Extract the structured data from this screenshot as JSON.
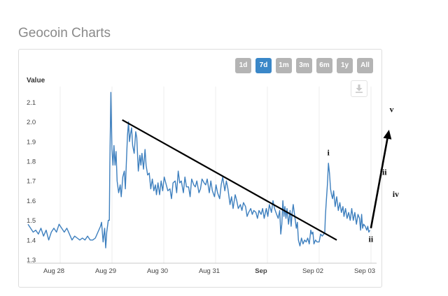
{
  "page": {
    "title": "Geocoin Charts"
  },
  "range_buttons": [
    {
      "label": "1d",
      "active": false
    },
    {
      "label": "7d",
      "active": true
    },
    {
      "label": "1m",
      "active": false
    },
    {
      "label": "3m",
      "active": false
    },
    {
      "label": "6m",
      "active": false
    },
    {
      "label": "1y",
      "active": false
    },
    {
      "label": "All",
      "active": false
    }
  ],
  "icons": {
    "export": "download-icon"
  },
  "colors": {
    "series": "#3d7fbe",
    "active_button": "#3a87c8",
    "button": "#b4b4b4"
  },
  "chart_data": {
    "type": "line",
    "ylabel": "Value",
    "ylim": [
      1.3,
      2.2
    ],
    "yticks": [
      "1.3",
      "1.4",
      "1.5",
      "1.6",
      "1.7",
      "1.8",
      "1.9",
      "2.0",
      "2.1"
    ],
    "xlim": [
      0,
      6.6
    ],
    "xticks": [
      {
        "label": "Aug 28",
        "x": 0.5
      },
      {
        "label": "Aug 29",
        "x": 1.5
      },
      {
        "label": "Aug 30",
        "x": 2.5
      },
      {
        "label": "Aug 31",
        "x": 3.5
      },
      {
        "label": "Sep",
        "x": 4.5,
        "bold": true
      },
      {
        "label": "Sep 02",
        "x": 5.5
      },
      {
        "label": "Sep 03",
        "x": 6.5
      }
    ],
    "grid": "vertical",
    "series": [
      {
        "values": [
          [
            0.0,
            1.48
          ],
          [
            0.05,
            1.46
          ],
          [
            0.1,
            1.44
          ],
          [
            0.15,
            1.45
          ],
          [
            0.2,
            1.43
          ],
          [
            0.25,
            1.46
          ],
          [
            0.3,
            1.42
          ],
          [
            0.35,
            1.45
          ],
          [
            0.4,
            1.4
          ],
          [
            0.45,
            1.44
          ],
          [
            0.5,
            1.46
          ],
          [
            0.55,
            1.44
          ],
          [
            0.6,
            1.48
          ],
          [
            0.65,
            1.46
          ],
          [
            0.7,
            1.44
          ],
          [
            0.75,
            1.46
          ],
          [
            0.8,
            1.43
          ],
          [
            0.85,
            1.4
          ],
          [
            0.9,
            1.42
          ],
          [
            0.95,
            1.41
          ],
          [
            1.0,
            1.4
          ],
          [
            1.05,
            1.41
          ],
          [
            1.1,
            1.4
          ],
          [
            1.15,
            1.42
          ],
          [
            1.2,
            1.4
          ],
          [
            1.25,
            1.4
          ],
          [
            1.3,
            1.41
          ],
          [
            1.35,
            1.44
          ],
          [
            1.4,
            1.47
          ],
          [
            1.42,
            1.49
          ],
          [
            1.45,
            1.39
          ],
          [
            1.48,
            1.46
          ],
          [
            1.5,
            1.36
          ],
          [
            1.52,
            1.44
          ],
          [
            1.55,
            1.5
          ],
          [
            1.57,
            1.5
          ],
          [
            1.58,
            1.78
          ],
          [
            1.6,
            2.15
          ],
          [
            1.62,
            1.86
          ],
          [
            1.64,
            1.78
          ],
          [
            1.66,
            1.88
          ],
          [
            1.68,
            1.78
          ],
          [
            1.7,
            1.85
          ],
          [
            1.72,
            1.7
          ],
          [
            1.75,
            1.64
          ],
          [
            1.78,
            1.68
          ],
          [
            1.8,
            1.62
          ],
          [
            1.83,
            1.72
          ],
          [
            1.86,
            1.75
          ],
          [
            1.88,
            1.66
          ],
          [
            1.9,
            1.8
          ],
          [
            1.92,
            1.93
          ],
          [
            1.94,
            2.0
          ],
          [
            1.96,
            1.9
          ],
          [
            1.98,
            1.94
          ],
          [
            2.0,
            1.97
          ],
          [
            2.02,
            1.88
          ],
          [
            2.05,
            1.84
          ],
          [
            2.08,
            1.95
          ],
          [
            2.1,
            1.92
          ],
          [
            2.13,
            1.75
          ],
          [
            2.16,
            1.83
          ],
          [
            2.18,
            1.78
          ],
          [
            2.2,
            1.84
          ],
          [
            2.23,
            1.76
          ],
          [
            2.26,
            1.86
          ],
          [
            2.28,
            1.78
          ],
          [
            2.31,
            1.73
          ],
          [
            2.34,
            1.74
          ],
          [
            2.37,
            1.66
          ],
          [
            2.4,
            1.71
          ],
          [
            2.43,
            1.65
          ],
          [
            2.46,
            1.68
          ],
          [
            2.48,
            1.63
          ],
          [
            2.51,
            1.69
          ],
          [
            2.54,
            1.63
          ],
          [
            2.57,
            1.7
          ],
          [
            2.6,
            1.65
          ],
          [
            2.63,
            1.72
          ],
          [
            2.66,
            1.69
          ],
          [
            2.7,
            1.65
          ],
          [
            2.74,
            1.66
          ],
          [
            2.77,
            1.61
          ],
          [
            2.8,
            1.69
          ],
          [
            2.84,
            1.7
          ],
          [
            2.87,
            1.64
          ],
          [
            2.9,
            1.75
          ],
          [
            2.93,
            1.69
          ],
          [
            2.96,
            1.7
          ],
          [
            3.0,
            1.64
          ],
          [
            3.03,
            1.72
          ],
          [
            3.06,
            1.67
          ],
          [
            3.1,
            1.67
          ],
          [
            3.13,
            1.62
          ],
          [
            3.16,
            1.71
          ],
          [
            3.2,
            1.68
          ],
          [
            3.23,
            1.67
          ],
          [
            3.26,
            1.7
          ],
          [
            3.3,
            1.64
          ],
          [
            3.33,
            1.66
          ],
          [
            3.36,
            1.71
          ],
          [
            3.4,
            1.69
          ],
          [
            3.43,
            1.68
          ],
          [
            3.46,
            1.71
          ],
          [
            3.5,
            1.64
          ],
          [
            3.53,
            1.7
          ],
          [
            3.56,
            1.65
          ],
          [
            3.6,
            1.62
          ],
          [
            3.63,
            1.68
          ],
          [
            3.66,
            1.64
          ],
          [
            3.7,
            1.61
          ],
          [
            3.73,
            1.68
          ],
          [
            3.76,
            1.72
          ],
          [
            3.8,
            1.65
          ],
          [
            3.83,
            1.7
          ],
          [
            3.86,
            1.66
          ],
          [
            3.9,
            1.58
          ],
          [
            3.93,
            1.62
          ],
          [
            3.96,
            1.56
          ],
          [
            4.0,
            1.63
          ],
          [
            4.03,
            1.6
          ],
          [
            4.06,
            1.56
          ],
          [
            4.1,
            1.58
          ],
          [
            4.13,
            1.55
          ],
          [
            4.16,
            1.59
          ],
          [
            4.2,
            1.57
          ],
          [
            4.23,
            1.52
          ],
          [
            4.26,
            1.54
          ],
          [
            4.3,
            1.56
          ],
          [
            4.33,
            1.53
          ],
          [
            4.36,
            1.55
          ],
          [
            4.4,
            1.54
          ],
          [
            4.43,
            1.51
          ],
          [
            4.46,
            1.55
          ],
          [
            4.5,
            1.53
          ],
          [
            4.53,
            1.56
          ],
          [
            4.56,
            1.51
          ],
          [
            4.6,
            1.56
          ],
          [
            4.63,
            1.52
          ],
          [
            4.66,
            1.58
          ],
          [
            4.7,
            1.54
          ],
          [
            4.73,
            1.6
          ],
          [
            4.76,
            1.56
          ],
          [
            4.8,
            1.53
          ],
          [
            4.83,
            1.51
          ],
          [
            4.86,
            1.55
          ],
          [
            4.88,
            1.43
          ],
          [
            4.9,
            1.48
          ],
          [
            4.92,
            1.6
          ],
          [
            4.94,
            1.52
          ],
          [
            4.96,
            1.57
          ],
          [
            4.98,
            1.51
          ],
          [
            5.0,
            1.56
          ],
          [
            5.03,
            1.48
          ],
          [
            5.06,
            1.55
          ],
          [
            5.08,
            1.47
          ],
          [
            5.1,
            1.54
          ],
          [
            5.12,
            1.58
          ],
          [
            5.15,
            1.52
          ],
          [
            5.18,
            1.46
          ],
          [
            5.2,
            1.49
          ],
          [
            5.22,
            1.4
          ],
          [
            5.25,
            1.37
          ],
          [
            5.28,
            1.41
          ],
          [
            5.31,
            1.38
          ],
          [
            5.34,
            1.4
          ],
          [
            5.37,
            1.39
          ],
          [
            5.4,
            1.41
          ],
          [
            5.43,
            1.38
          ],
          [
            5.46,
            1.45
          ],
          [
            5.48,
            1.43
          ],
          [
            5.5,
            1.44
          ],
          [
            5.52,
            1.38
          ],
          [
            5.55,
            1.4
          ],
          [
            5.58,
            1.39
          ],
          [
            5.62,
            1.39
          ],
          [
            5.65,
            1.43
          ],
          [
            5.68,
            1.42
          ],
          [
            5.71,
            1.43
          ],
          [
            5.73,
            1.44
          ],
          [
            5.74,
            1.52
          ],
          [
            5.76,
            1.6
          ],
          [
            5.78,
            1.68
          ],
          [
            5.8,
            1.79
          ],
          [
            5.82,
            1.74
          ],
          [
            5.84,
            1.66
          ],
          [
            5.86,
            1.63
          ],
          [
            5.88,
            1.61
          ],
          [
            5.9,
            1.65
          ],
          [
            5.93,
            1.57
          ],
          [
            5.96,
            1.62
          ],
          [
            5.99,
            1.55
          ],
          [
            6.02,
            1.59
          ],
          [
            6.05,
            1.54
          ],
          [
            6.08,
            1.57
          ],
          [
            6.1,
            1.52
          ],
          [
            6.13,
            1.56
          ],
          [
            6.16,
            1.51
          ],
          [
            6.19,
            1.54
          ],
          [
            6.22,
            1.5
          ],
          [
            6.25,
            1.56
          ],
          [
            6.28,
            1.5
          ],
          [
            6.31,
            1.54
          ],
          [
            6.34,
            1.48
          ],
          [
            6.37,
            1.53
          ],
          [
            6.4,
            1.51
          ],
          [
            6.42,
            1.45
          ],
          [
            6.44,
            1.53
          ],
          [
            6.46,
            1.46
          ],
          [
            6.48,
            1.48
          ],
          [
            6.51,
            1.47
          ],
          [
            6.54,
            1.45
          ],
          [
            6.56,
            1.47
          ],
          [
            6.58,
            1.44
          ],
          [
            6.6,
            1.45
          ]
        ]
      }
    ],
    "annotations": {
      "trendline": [
        [
          1.82,
          2.01
        ],
        [
          5.96,
          1.4
        ]
      ],
      "arrow": [
        [
          6.62,
          1.46
        ],
        [
          6.97,
          1.96
        ]
      ],
      "wave_labels": [
        {
          "text": "i",
          "x": 5.8,
          "y": 1.83
        },
        {
          "text": "ii",
          "x": 6.62,
          "y": 1.39
        },
        {
          "text": "iii",
          "x": 6.86,
          "y": 1.73
        },
        {
          "text": "iv",
          "x": 7.1,
          "y": 1.62
        },
        {
          "text": "v",
          "x": 7.02,
          "y": 2.05
        }
      ]
    }
  }
}
